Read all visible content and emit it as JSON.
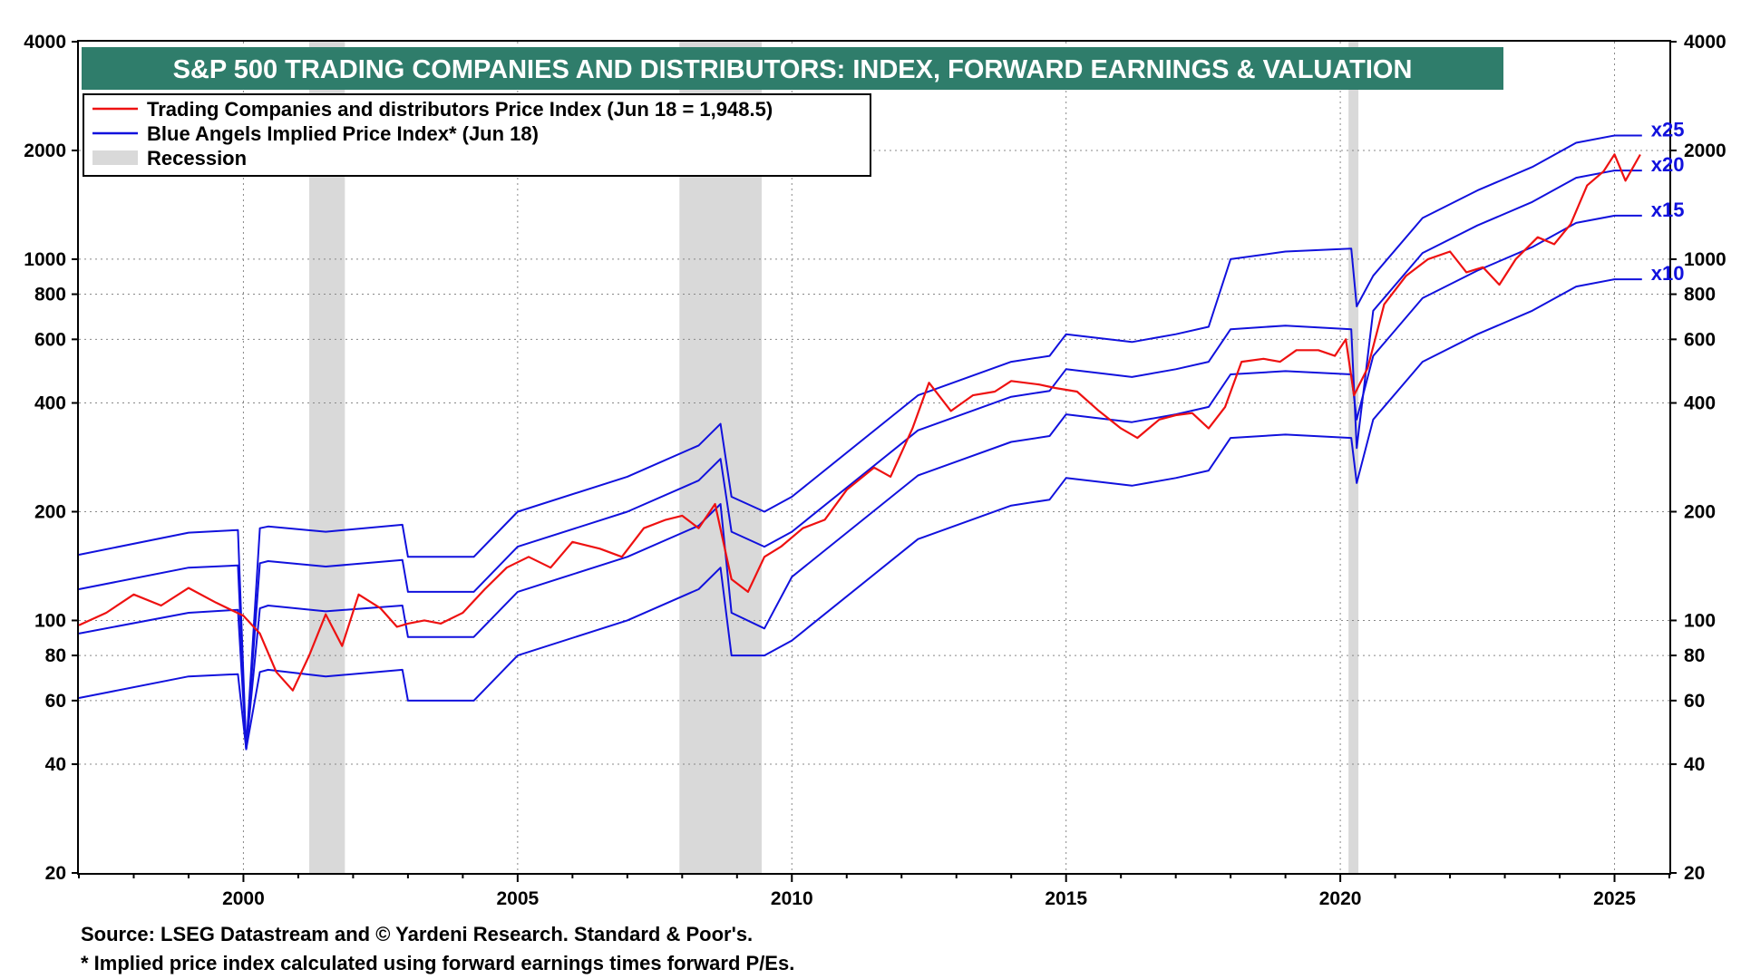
{
  "chart_data": {
    "type": "line",
    "title": "S&P 500 TRADING COMPANIES AND DISTRIBUTORS: INDEX, FORWARD EARNINGS & VALUATION",
    "y_scale": "log",
    "ylim": [
      20,
      4000
    ],
    "xlim": [
      1997.0,
      2026.0
    ],
    "x_ticks": [
      2000,
      2005,
      2010,
      2015,
      2020,
      2025
    ],
    "y_ticks": [
      20,
      40,
      60,
      80,
      100,
      200,
      400,
      600,
      800,
      1000,
      2000,
      4000
    ],
    "grid": true,
    "colors": {
      "price": "#ee1111",
      "implied": "#1111dd",
      "recession": "#d9d9d9",
      "title_bg": "#2f7d6b"
    },
    "legend": {
      "placement": "top-left",
      "entries": [
        "Trading Companies and distributors Price Index (Jun 18 = 1,948.5)",
        "Blue Angels Implied Price Index* (Jun 18)",
        "Recession"
      ]
    },
    "recessions": [
      [
        2001.2,
        2001.85
      ],
      [
        2007.95,
        2009.45
      ],
      [
        2020.15,
        2020.33
      ]
    ],
    "series": [
      {
        "name": "Trading Companies and distributors Price Index (Jun 18 = 1,948.5)",
        "x": [
          1997.0,
          1997.5,
          1998.0,
          1998.5,
          1999.0,
          1999.5,
          2000.0,
          2000.3,
          2000.6,
          2000.9,
          2001.2,
          2001.5,
          2001.8,
          2002.1,
          2002.5,
          2002.8,
          2003.0,
          2003.3,
          2003.6,
          2004.0,
          2004.4,
          2004.8,
          2005.2,
          2005.6,
          2006.0,
          2006.5,
          2006.9,
          2007.3,
          2007.7,
          2008.0,
          2008.3,
          2008.6,
          2008.9,
          2009.2,
          2009.5,
          2009.8,
          2010.2,
          2010.6,
          2011.0,
          2011.5,
          2011.8,
          2012.2,
          2012.5,
          2012.9,
          2013.3,
          2013.7,
          2014.0,
          2014.5,
          2014.8,
          2015.2,
          2015.6,
          2016.0,
          2016.3,
          2016.7,
          2017.0,
          2017.3,
          2017.6,
          2017.9,
          2018.2,
          2018.6,
          2018.9,
          2019.2,
          2019.6,
          2019.9,
          2020.1,
          2020.25,
          2020.5,
          2020.8,
          2021.2,
          2021.6,
          2022.0,
          2022.3,
          2022.6,
          2022.9,
          2023.2,
          2023.6,
          2023.9,
          2024.2,
          2024.5,
          2024.8,
          2025.0,
          2025.2,
          2025.47
        ],
        "values": [
          97,
          105,
          118,
          110,
          123,
          112,
          103,
          92,
          72,
          64,
          80,
          104,
          85,
          118,
          108,
          96,
          98,
          100,
          98,
          105,
          122,
          140,
          150,
          140,
          165,
          158,
          150,
          180,
          190,
          195,
          180,
          210,
          130,
          120,
          150,
          160,
          180,
          190,
          230,
          265,
          250,
          340,
          455,
          380,
          420,
          430,
          460,
          450,
          440,
          430,
          380,
          340,
          320,
          360,
          370,
          375,
          340,
          390,
          520,
          530,
          520,
          560,
          560,
          540,
          600,
          420,
          500,
          750,
          900,
          1000,
          1050,
          920,
          950,
          850,
          1000,
          1150,
          1100,
          1250,
          1600,
          1750,
          1950,
          1650,
          1948.5
        ]
      },
      {
        "name": "x25",
        "x": [
          1997.0,
          1999.0,
          1999.9,
          2000.05,
          2000.3,
          2000.45,
          2001.5,
          2002.9,
          2003.0,
          2004.2,
          2005.0,
          2007.0,
          2008.3,
          2008.7,
          2008.9,
          2009.5,
          2010.0,
          2012.3,
          2014.0,
          2014.7,
          2015.0,
          2016.2,
          2017.0,
          2017.6,
          2018.0,
          2019.0,
          2020.2,
          2020.3,
          2020.6,
          2021.5,
          2022.5,
          2023.5,
          2024.3,
          2025.0,
          2025.5
        ],
        "values": [
          152,
          175,
          178,
          44,
          180,
          182,
          176,
          184,
          150,
          150,
          200,
          250,
          305,
          350,
          220,
          200,
          220,
          420,
          520,
          540,
          620,
          590,
          620,
          650,
          1000,
          1050,
          1070,
          740,
          900,
          1300,
          1550,
          1800,
          2100,
          2200,
          2200
        ]
      },
      {
        "name": "x20",
        "x": [
          1997.0,
          1999.0,
          1999.9,
          2000.05,
          2000.3,
          2000.45,
          2001.5,
          2002.9,
          2003.0,
          2004.2,
          2005.0,
          2007.0,
          2008.3,
          2008.7,
          2008.9,
          2009.5,
          2010.0,
          2012.3,
          2014.0,
          2014.7,
          2015.0,
          2016.2,
          2017.0,
          2017.6,
          2018.0,
          2019.0,
          2020.2,
          2020.3,
          2020.6,
          2021.5,
          2022.5,
          2023.5,
          2024.3,
          2025.0,
          2025.5
        ],
        "values": [
          122,
          140,
          142,
          44,
          144,
          146,
          141,
          147,
          120,
          120,
          160,
          200,
          244,
          280,
          176,
          160,
          176,
          336,
          416,
          432,
          496,
          472,
          496,
          520,
          640,
          655,
          640,
          300,
          720,
          1040,
          1240,
          1440,
          1680,
          1760,
          1760
        ]
      },
      {
        "name": "x15",
        "x": [
          1997.0,
          1999.0,
          1999.9,
          2000.05,
          2000.3,
          2000.45,
          2001.5,
          2002.9,
          2003.0,
          2004.2,
          2005.0,
          2007.0,
          2008.3,
          2008.7,
          2008.9,
          2009.5,
          2010.0,
          2012.3,
          2014.0,
          2014.7,
          2015.0,
          2016.2,
          2017.0,
          2017.6,
          2018.0,
          2019.0,
          2020.2,
          2020.3,
          2020.6,
          2021.5,
          2022.5,
          2023.5,
          2024.3,
          2025.0,
          2025.5
        ],
        "values": [
          92,
          105,
          107,
          44,
          108,
          110,
          106,
          110,
          90,
          90,
          120,
          150,
          183,
          210,
          105,
          95,
          132,
          252,
          312,
          324,
          372,
          354,
          372,
          390,
          480,
          490,
          480,
          360,
          540,
          780,
          930,
          1080,
          1260,
          1320,
          1320
        ]
      },
      {
        "name": "x10",
        "x": [
          1997.0,
          1999.0,
          1999.9,
          2000.05,
          2000.3,
          2000.45,
          2001.5,
          2002.9,
          2003.0,
          2004.2,
          2005.0,
          2007.0,
          2008.3,
          2008.7,
          2008.9,
          2009.5,
          2010.0,
          2012.3,
          2014.0,
          2014.7,
          2015.0,
          2016.2,
          2017.0,
          2017.6,
          2018.0,
          2019.0,
          2020.2,
          2020.3,
          2020.6,
          2021.5,
          2022.5,
          2023.5,
          2024.3,
          2025.0,
          2025.5
        ],
        "values": [
          61,
          70,
          71,
          44,
          72,
          73,
          70,
          73,
          60,
          60,
          80,
          100,
          122,
          140,
          80,
          80,
          88,
          168,
          208,
          216,
          248,
          236,
          248,
          260,
          320,
          327,
          320,
          240,
          360,
          520,
          620,
          720,
          840,
          880,
          880
        ]
      }
    ],
    "annotations": [
      "x25",
      "x20",
      "x15",
      "x10"
    ]
  },
  "footer": {
    "source": "Source: LSEG Datastream and © Yardeni Research. Standard & Poor's.",
    "note": "* Implied price index calculated using forward earnings times forward P/Es."
  }
}
